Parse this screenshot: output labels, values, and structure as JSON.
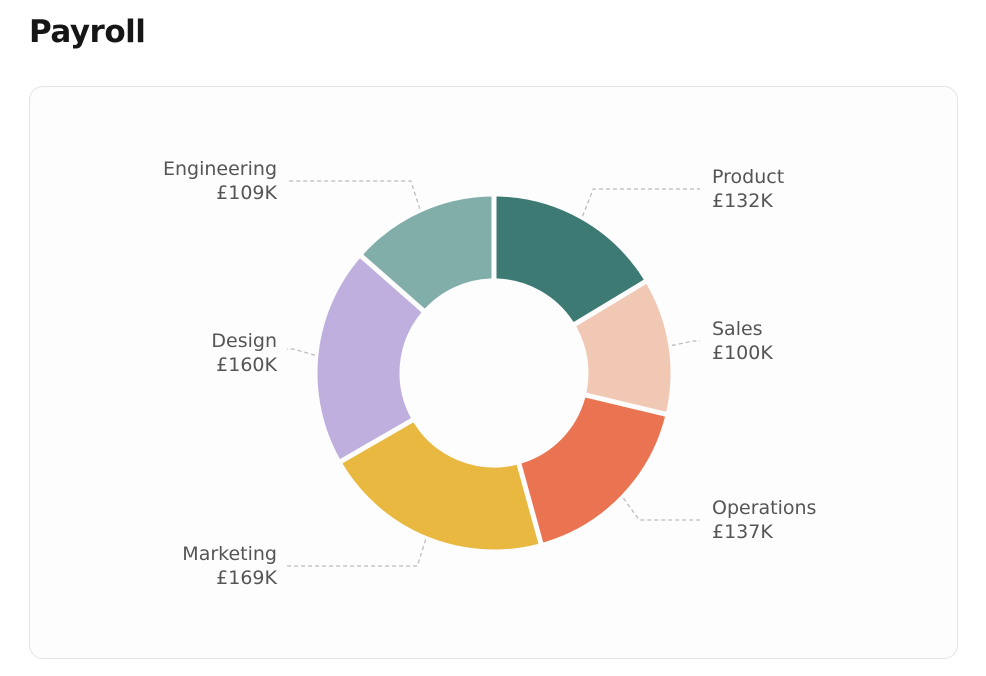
{
  "header": {
    "title": "Payroll"
  },
  "chart_data": {
    "type": "pie",
    "title": "Payroll",
    "variant": "donut",
    "currency": "£",
    "unit": "K",
    "order": "clockwise from 12 o'clock",
    "categories": [
      "Product",
      "Sales",
      "Operations",
      "Marketing",
      "Design",
      "Engineering"
    ],
    "values": [
      132,
      100,
      137,
      169,
      160,
      109
    ],
    "value_labels": [
      "£132K",
      "£100K",
      "£137K",
      "£169K",
      "£160K",
      "£109K"
    ],
    "colors": [
      "#3d7a73",
      "#f0c8b4",
      "#ea7452",
      "#e9b840",
      "#bfafde",
      "#82aeaa"
    ],
    "legend": "none (callout labels with dashed leader lines)"
  },
  "slices": [
    {
      "name": "Product",
      "value": 132,
      "display": "£132K",
      "color": "#3d7a73",
      "side": "right"
    },
    {
      "name": "Sales",
      "value": 100,
      "display": "£100K",
      "color": "#f0c8b4",
      "side": "right"
    },
    {
      "name": "Operations",
      "value": 137,
      "display": "£137K",
      "color": "#ea7452",
      "side": "right"
    },
    {
      "name": "Marketing",
      "value": 169,
      "display": "£169K",
      "color": "#e9b840",
      "side": "left"
    },
    {
      "name": "Design",
      "value": 160,
      "display": "£160K",
      "color": "#bfafde",
      "side": "left"
    },
    {
      "name": "Engineering",
      "value": 109,
      "display": "£109K",
      "color": "#82aeaa",
      "side": "left"
    }
  ]
}
